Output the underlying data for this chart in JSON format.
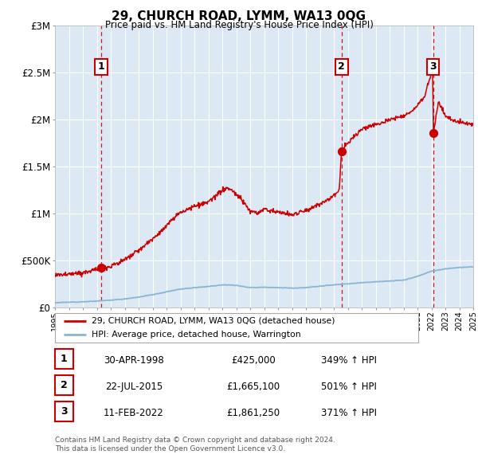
{
  "title": "29, CHURCH ROAD, LYMM, WA13 0QG",
  "subtitle": "Price paid vs. HM Land Registry's House Price Index (HPI)",
  "bg_color": "#dce9f5",
  "red_line_color": "#cc0000",
  "blue_line_color": "#8ab4d4",
  "sale_points": [
    {
      "num": 1,
      "year": 1998.33,
      "value": 425000,
      "label": "1"
    },
    {
      "num": 2,
      "year": 2015.55,
      "value": 1665100,
      "label": "2"
    },
    {
      "num": 3,
      "year": 2022.12,
      "value": 1861250,
      "label": "3"
    }
  ],
  "sale_vlines_x": [
    1998.33,
    2015.55,
    2022.12
  ],
  "legend_entries": [
    "29, CHURCH ROAD, LYMM, WA13 0QG (detached house)",
    "HPI: Average price, detached house, Warrington"
  ],
  "table_rows": [
    [
      "1",
      "30-APR-1998",
      "£425,000",
      "349% ↑ HPI"
    ],
    [
      "2",
      "22-JUL-2015",
      "£1,665,100",
      "501% ↑ HPI"
    ],
    [
      "3",
      "11-FEB-2022",
      "£1,861,250",
      "371% ↑ HPI"
    ]
  ],
  "footnote": "Contains HM Land Registry data © Crown copyright and database right 2024.\nThis data is licensed under the Open Government Licence v3.0.",
  "xmin": 1995,
  "xmax": 2025,
  "ymin": 0,
  "ymax": 3000000,
  "yticks": [
    0,
    500000,
    1000000,
    1500000,
    2000000,
    2500000,
    3000000
  ],
  "ytick_labels": [
    "£0",
    "£500K",
    "£1M",
    "£1.5M",
    "£2M",
    "£2.5M",
    "£3M"
  ]
}
